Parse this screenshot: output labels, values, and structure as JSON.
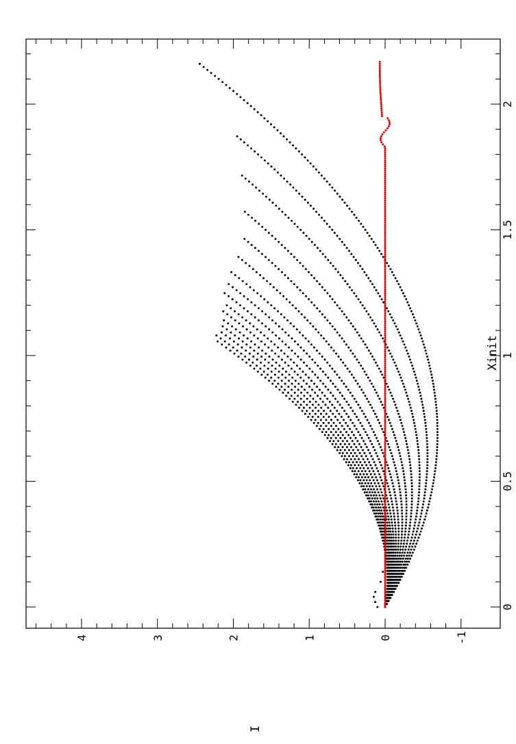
{
  "chart_data": {
    "type": "scatter",
    "orientation": "rotated-90-ccw",
    "xlabel": "Xinit",
    "ylabel": "I",
    "xlim": [
      -0.05,
      2.3
    ],
    "ylim": [
      -1,
      4.8
    ],
    "x_ticks": [
      0,
      0.5,
      1,
      1.5,
      2
    ],
    "x_tick_labels": [
      "0",
      "0.5",
      "1",
      "1.5",
      "2"
    ],
    "y_ticks": [
      -1,
      0,
      1,
      2,
      3,
      4
    ],
    "y_tick_labels": [
      "-1",
      "0",
      "1",
      "2",
      "3",
      "4"
    ],
    "x_minor_step": 0.1,
    "y_minor_step": 0.2,
    "grid": false,
    "legend": "none",
    "series": [
      {
        "color": "#000000",
        "note": "family of parabolic curves I = a*x*(x - r)",
        "curves": [
          {
            "a": 1.45,
            "root": 1.38,
            "x_end": 2.17
          },
          {
            "a": 1.55,
            "root": 1.2,
            "x_end": 1.88
          },
          {
            "a": 1.65,
            "root": 1.05,
            "x_end": 1.72
          },
          {
            "a": 1.75,
            "root": 0.9,
            "x_end": 1.58
          },
          {
            "a": 1.85,
            "root": 0.78,
            "x_end": 1.47
          },
          {
            "a": 1.95,
            "root": 0.68,
            "x_end": 1.4
          },
          {
            "a": 2.05,
            "root": 0.59,
            "x_end": 1.34
          },
          {
            "a": 2.1,
            "root": 0.52,
            "x_end": 1.29
          },
          {
            "a": 2.15,
            "root": 0.46,
            "x_end": 1.25
          },
          {
            "a": 2.2,
            "root": 0.41,
            "x_end": 1.21
          },
          {
            "a": 2.25,
            "root": 0.37,
            "x_end": 1.18
          },
          {
            "a": 2.3,
            "root": 0.33,
            "x_end": 1.15
          },
          {
            "a": 2.35,
            "root": 0.3,
            "x_end": 1.12
          },
          {
            "a": 2.4,
            "root": 0.27,
            "x_end": 1.1
          },
          {
            "a": 2.45,
            "root": 0.24,
            "x_end": 1.08
          },
          {
            "a": 2.5,
            "root": 0.22,
            "x_end": 1.06
          }
        ]
      },
      {
        "color": "#e00000",
        "note": "near-zero line with small wiggle near x = 1.88",
        "x_start": 0,
        "x_end": 2.17,
        "y": 0.0
      }
    ]
  }
}
